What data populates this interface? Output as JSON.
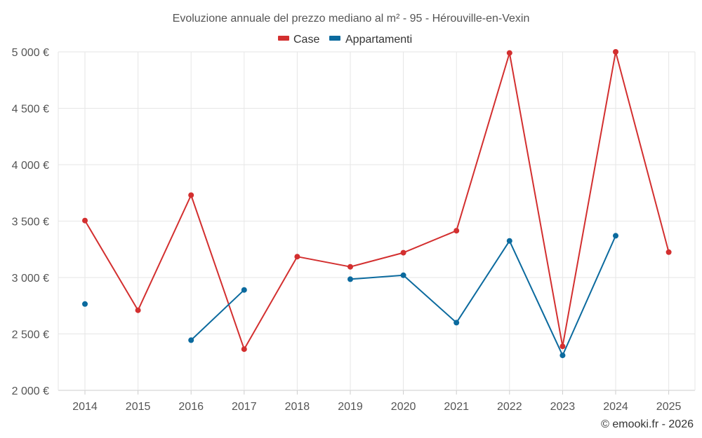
{
  "chart_data": {
    "type": "line",
    "title": "Evoluzione annuale del prezzo mediano al m² - 95 - Hérouville-en-Vexin",
    "categories": [
      "2014",
      "2015",
      "2016",
      "2017",
      "2018",
      "2019",
      "2020",
      "2021",
      "2022",
      "2023",
      "2024",
      "2025"
    ],
    "y_ticks": [
      "2 000 €",
      "2 500 €",
      "3 000 €",
      "3 500 €",
      "4 000 €",
      "4 500 €",
      "5 000 €"
    ],
    "ylim": [
      2000,
      5000
    ],
    "grid": true,
    "legend_position": "top-center",
    "series": [
      {
        "name": "Case",
        "color": "#d32f2f",
        "values": [
          3505,
          2710,
          3730,
          2365,
          3185,
          3095,
          3220,
          3415,
          4990,
          2390,
          5000,
          3225
        ]
      },
      {
        "name": "Appartamenti",
        "color": "#0b6a9e",
        "values": [
          2765,
          null,
          2445,
          2890,
          null,
          2985,
          3020,
          2600,
          3325,
          2310,
          3370,
          null
        ]
      }
    ],
    "credit": "© emooki.fr - 2026"
  }
}
